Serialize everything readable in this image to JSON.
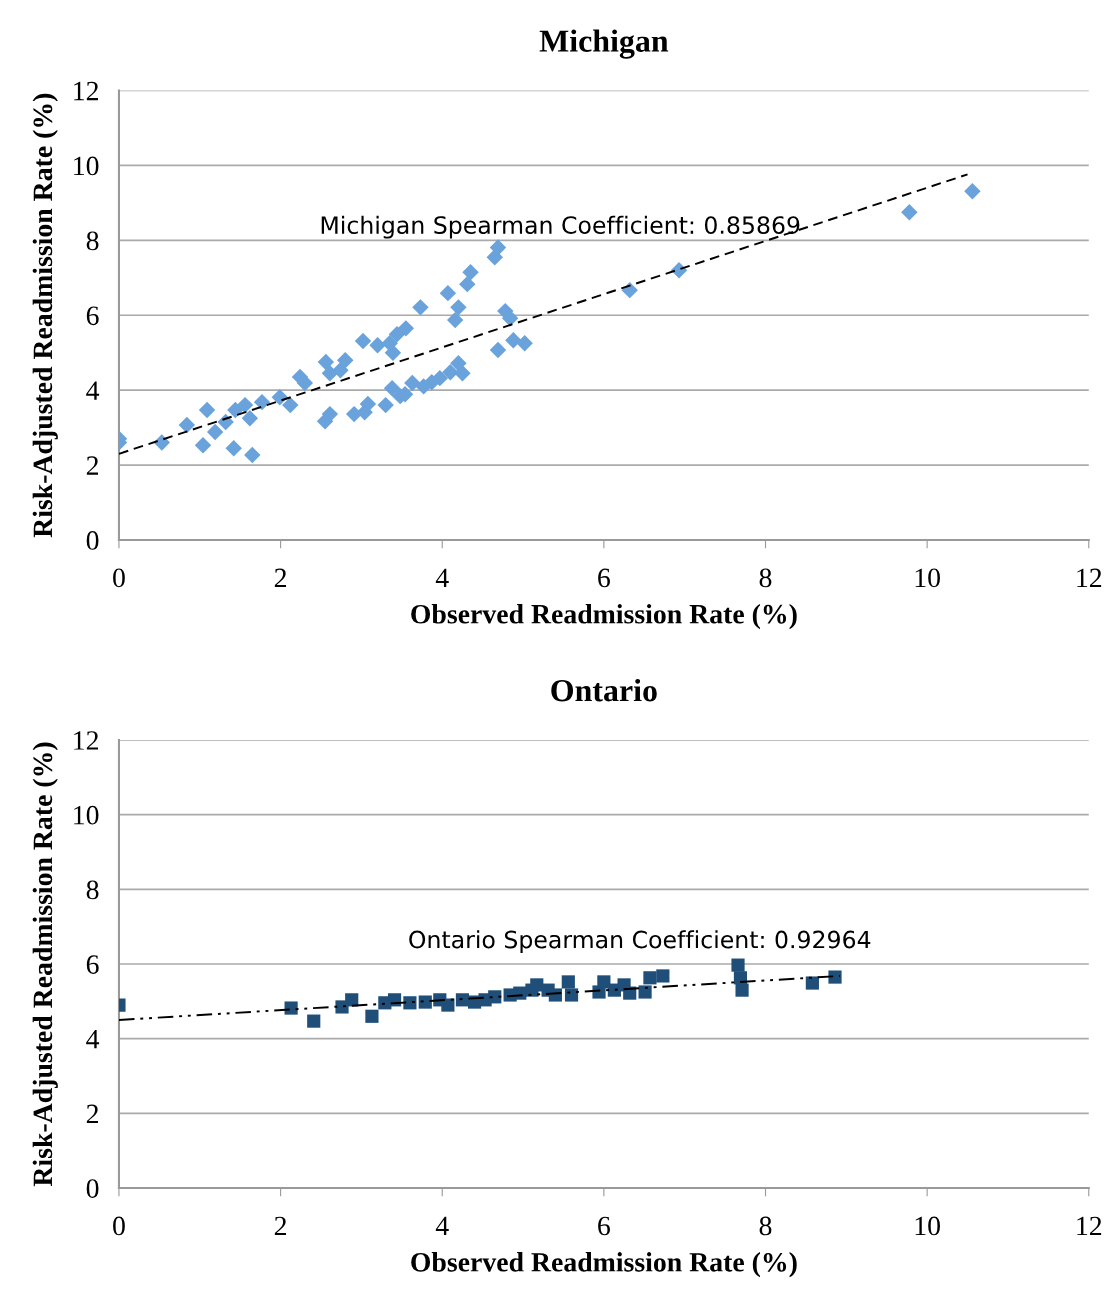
{
  "chart_data": [
    {
      "type": "scatter",
      "title": "Michigan",
      "xlabel": "Observed Readmission Rate (%)",
      "ylabel": "Risk-Adjusted Readmission Rate (%)",
      "xlim": [
        0,
        12
      ],
      "ylim": [
        0,
        12
      ],
      "xticks": [
        0,
        2,
        4,
        6,
        8,
        10,
        12
      ],
      "yticks": [
        0,
        2,
        4,
        6,
        8,
        10,
        12
      ],
      "grid": "y",
      "marker": "diamond",
      "annotations": [
        "Michigan Spearman Coefficient: 0.85869"
      ],
      "series": [
        {
          "color": "#6aa2dc",
          "x": [
            0,
            0,
            0.53,
            0.84,
            1.04,
            1.09,
            1.19,
            1.32,
            1.42,
            1.44,
            1.56,
            1.62,
            1.65,
            1.77,
            1.99,
            2.12,
            2.24,
            2.3,
            2.55,
            2.61,
            2.56,
            2.61,
            2.74,
            2.8,
            2.91,
            3.04,
            3.08,
            3.02,
            3.2,
            3.35,
            3.39,
            3.44,
            3.55,
            3.3,
            3.38,
            3.48,
            3.63,
            3.54,
            3.73,
            3.77,
            3.87,
            3.97,
            4.07,
            4.16,
            4.2,
            4.1,
            4.2,
            4.25,
            4.31,
            4.35,
            4.65,
            4.69,
            4.69,
            4.78,
            4.84,
            4.88,
            5.02,
            6.32,
            6.93,
            9.78,
            10.56
          ],
          "values": [
            2.7,
            2.6,
            2.6,
            3.07,
            2.53,
            3.47,
            2.88,
            3.15,
            2.45,
            3.47,
            3.6,
            3.25,
            2.27,
            3.68,
            3.81,
            3.6,
            4.35,
            4.19,
            3.17,
            3.36,
            4.75,
            4.45,
            4.53,
            4.8,
            3.36,
            3.41,
            3.63,
            5.31,
            5.2,
            5.25,
            5.0,
            5.49,
            5.65,
            3.6,
            4.05,
            3.84,
            4.19,
            3.89,
            6.21,
            4.1,
            4.21,
            4.32,
            6.59,
            5.87,
            6.21,
            4.48,
            4.72,
            4.45,
            6.83,
            7.15,
            7.55,
            7.81,
            5.07,
            6.11,
            5.92,
            5.33,
            5.25,
            6.67,
            7.2,
            8.75,
            9.31
          ]
        },
        {
          "type": "line",
          "color": "#000000",
          "line_style": "dashed",
          "marker": "none",
          "x": [
            0,
            10.5
          ],
          "values": [
            2.3,
            9.76
          ]
        }
      ]
    },
    {
      "type": "scatter",
      "title": "Ontario",
      "xlabel": "Observed Readmission Rate (%)",
      "ylabel": "Risk-Adjusted Readmission Rate (%)",
      "xlim": [
        0,
        12
      ],
      "ylim": [
        0,
        12
      ],
      "xticks": [
        0,
        2,
        4,
        6,
        8,
        10,
        12
      ],
      "yticks": [
        0,
        2,
        4,
        6,
        8,
        10,
        12
      ],
      "grid": "y",
      "marker": "square",
      "annotations": [
        "Ontario Spearman Coefficient: 0.92964"
      ],
      "series": [
        {
          "color": "#1f4e79",
          "x": [
            0,
            2.13,
            2.41,
            2.76,
            2.88,
            3.13,
            3.29,
            3.41,
            3.6,
            3.79,
            3.97,
            4.07,
            4.25,
            4.4,
            4.53,
            4.65,
            4.84,
            4.96,
            5.11,
            5.17,
            5.31,
            5.4,
            5.56,
            5.6,
            5.94,
            6.0,
            6.13,
            6.25,
            6.32,
            6.51,
            6.57,
            6.73,
            7.66,
            7.71,
            7.69,
            8.58,
            8.86
          ],
          "values": [
            4.9,
            4.82,
            4.47,
            4.85,
            5.04,
            4.6,
            4.96,
            5.04,
            4.96,
            4.98,
            5.04,
            4.9,
            5.04,
            4.98,
            5.04,
            5.12,
            5.17,
            5.22,
            5.3,
            5.44,
            5.3,
            5.17,
            5.52,
            5.17,
            5.25,
            5.52,
            5.3,
            5.44,
            5.22,
            5.25,
            5.63,
            5.68,
            5.97,
            5.3,
            5.63,
            5.49,
            5.65
          ]
        },
        {
          "type": "line",
          "color": "#000000",
          "line_style": "dashdot",
          "marker": "none",
          "x": [
            0,
            8.92
          ],
          "values": [
            4.5,
            5.68
          ]
        }
      ]
    }
  ]
}
